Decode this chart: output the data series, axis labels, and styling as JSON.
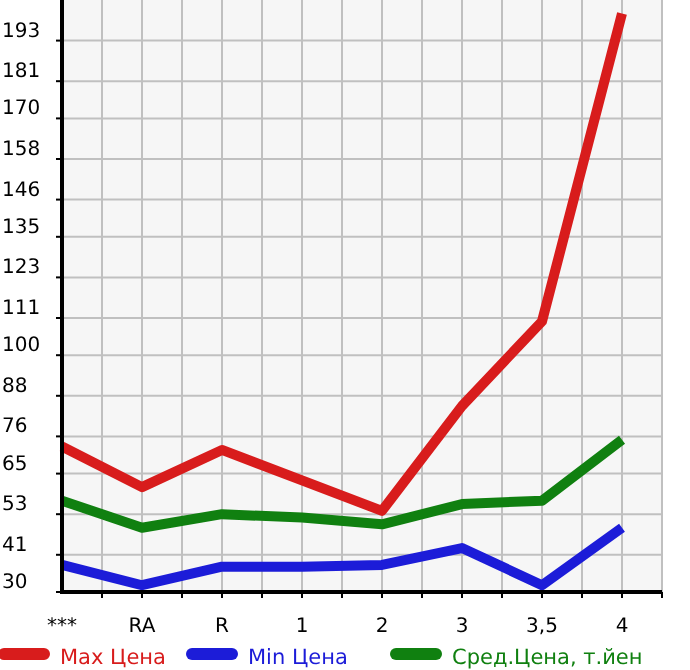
{
  "chart_data": {
    "type": "line",
    "categories": [
      "***",
      "RA",
      "R",
      "1",
      "2",
      "3",
      "3,5",
      "4"
    ],
    "series": [
      {
        "name": "Max Цена",
        "color": "#d81c1c",
        "values": [
          73,
          61,
          72,
          63,
          54,
          85,
          110,
          201
        ]
      },
      {
        "name": "Min Цена",
        "color": "#1c1cd8",
        "values": [
          38,
          32,
          37.5,
          37.5,
          38,
          43,
          32,
          49
        ]
      },
      {
        "name": "Сред.Цена, т.йен",
        "color": "#108010",
        "values": [
          57,
          49,
          53,
          52,
          50,
          56,
          57,
          75
        ]
      }
    ],
    "ylim": [
      30,
      205
    ],
    "yticks": [
      30,
      41,
      53,
      65,
      76,
      88,
      100,
      111,
      123,
      135,
      146,
      158,
      170,
      181,
      193
    ],
    "grid": true,
    "legend": "bottom",
    "marker": "none",
    "line_style": "solid"
  }
}
